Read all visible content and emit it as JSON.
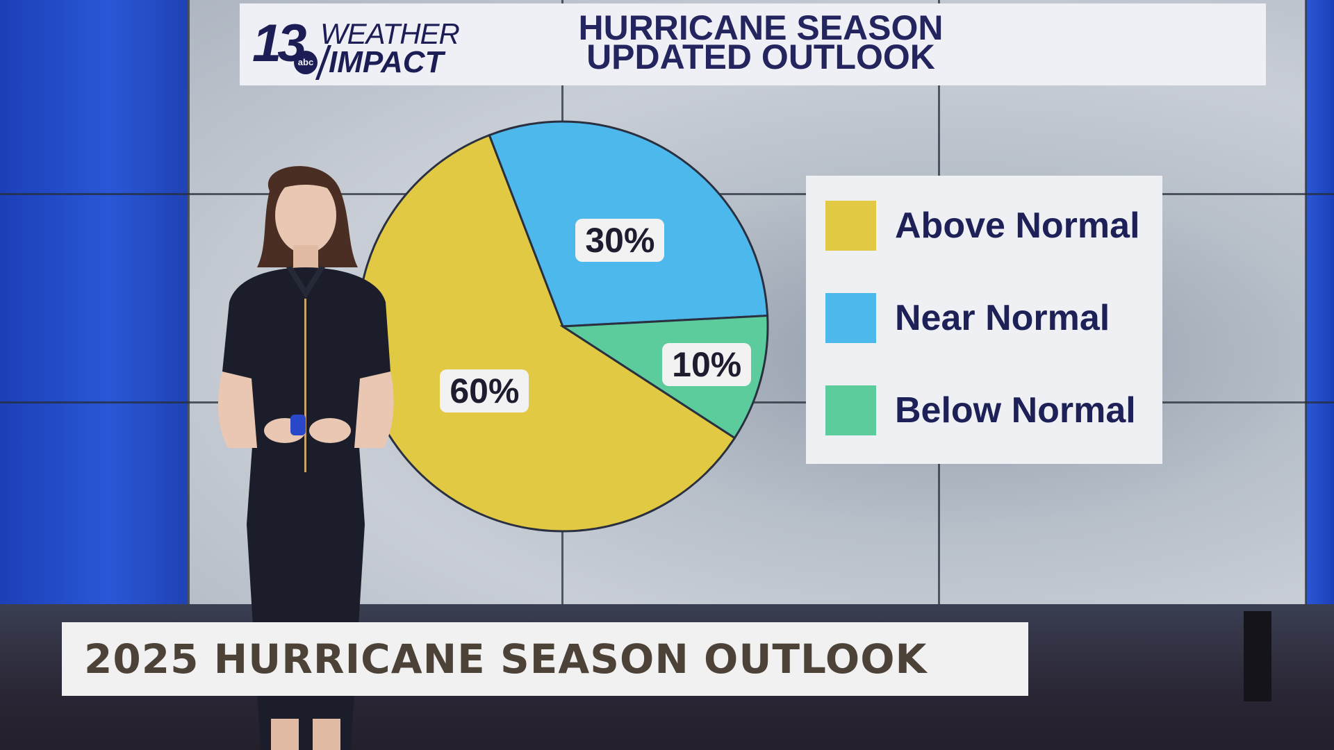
{
  "station": {
    "channel_number": "13",
    "network": "abc",
    "brand_line1": "WEATHER",
    "brand_line2": "IMPACT"
  },
  "lower_third": {
    "headline": "2025 HURRICANE SEASON OUTLOOK"
  },
  "chart_data": {
    "type": "pie",
    "title": "HURRICANE SEASON\nUPDATED OUTLOOK",
    "title_line1": "HURRICANE SEASON",
    "title_line2": "UPDATED OUTLOOK",
    "slices": [
      {
        "name": "Above Normal",
        "value": 60,
        "label": "60%",
        "color": "#e2c943"
      },
      {
        "name": "Near Normal",
        "value": 30,
        "label": "30%",
        "color": "#4cb8ec"
      },
      {
        "name": "Below Normal",
        "value": 10,
        "label": "10%",
        "color": "#5ccc9c"
      }
    ],
    "legend": [
      "Above Normal",
      "Near Normal",
      "Below Normal"
    ],
    "legend_position": "right"
  }
}
